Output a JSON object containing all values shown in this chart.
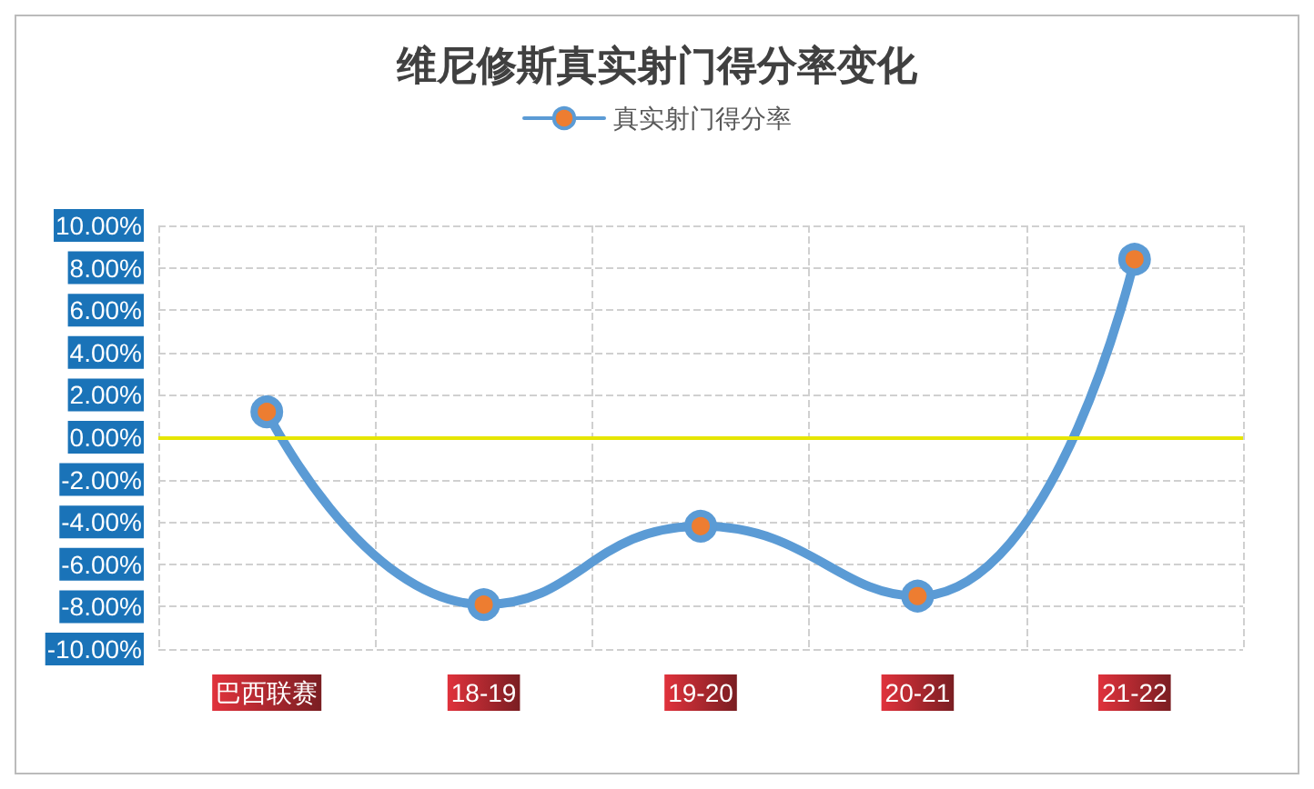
{
  "chart_data": {
    "type": "line",
    "title": "维尼修斯真实射门得分率变化",
    "categories": [
      "巴西联赛",
      "18-19",
      "19-20",
      "20-21",
      "21-22"
    ],
    "series": [
      {
        "name": "真实射门得分率",
        "color": "#5b9bd5",
        "values": [
          1.2,
          -7.9,
          -4.2,
          -7.5,
          8.4
        ]
      }
    ],
    "ylim": [
      -10,
      10
    ],
    "yticks": [
      {
        "value": -10,
        "label": "-10.00%"
      },
      {
        "value": -8,
        "label": "-8.00%"
      },
      {
        "value": -6,
        "label": "-6.00%"
      },
      {
        "value": -4,
        "label": "-4.00%"
      },
      {
        "value": -2,
        "label": "-2.00%"
      },
      {
        "value": 0,
        "label": "0.00%"
      },
      {
        "value": 2,
        "label": "2.00%"
      },
      {
        "value": 4,
        "label": "4.00%"
      },
      {
        "value": 6,
        "label": "6.00%"
      },
      {
        "value": 8,
        "label": "8.00%"
      },
      {
        "value": 10,
        "label": "10.00%"
      }
    ],
    "ref_lines": [
      {
        "axis": "y",
        "value": 0,
        "color": "#e6e600"
      }
    ],
    "grid": true,
    "legend": "top",
    "marker": "circle",
    "line_style": "solid"
  }
}
